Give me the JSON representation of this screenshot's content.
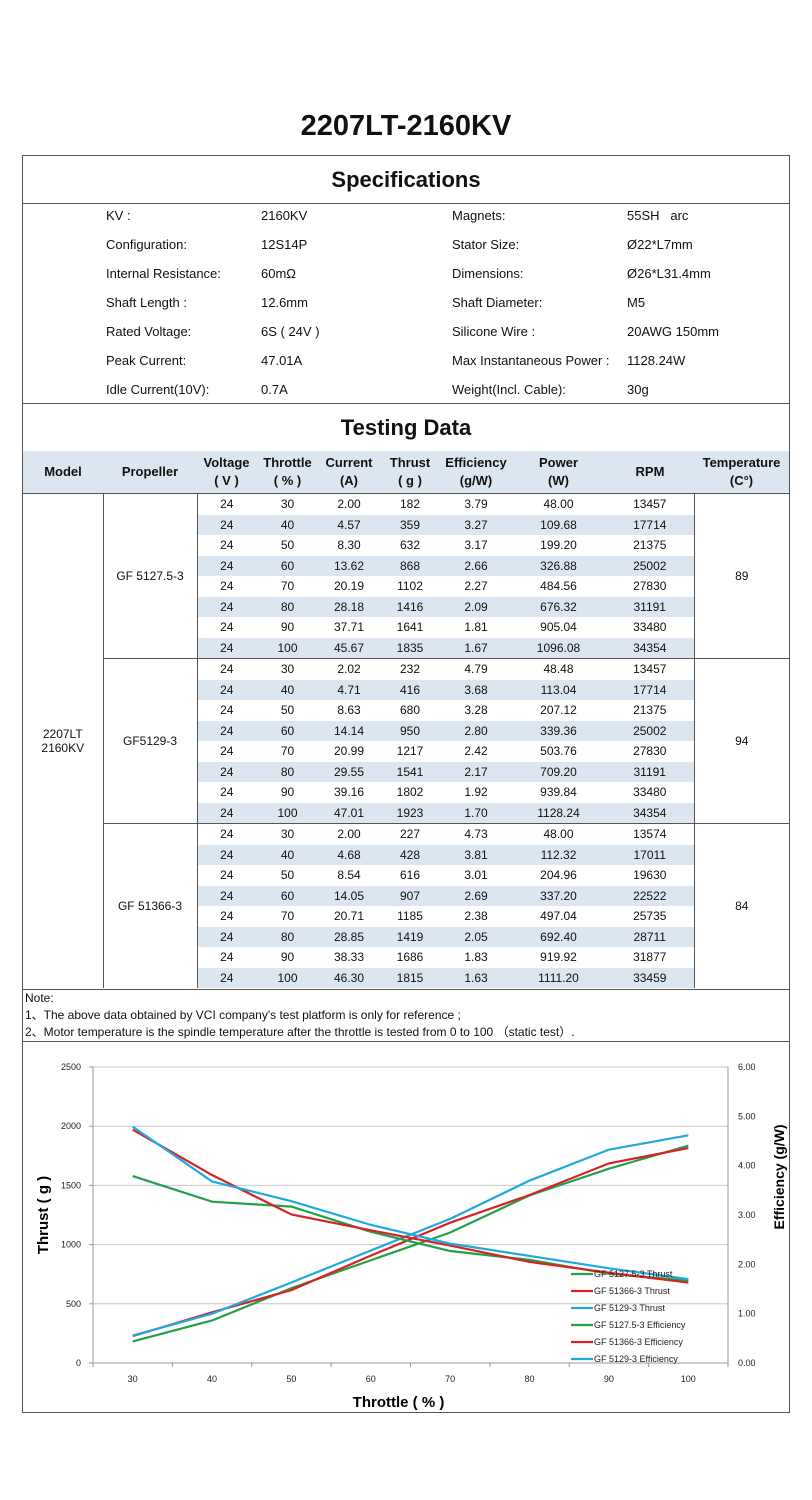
{
  "title": "2207LT-2160KV",
  "specifications": {
    "heading": "Specifications",
    "left": [
      {
        "label": "KV :",
        "value": "2160KV"
      },
      {
        "label": "Configuration:",
        "value": "12S14P"
      },
      {
        "label": "Internal Resistance:",
        "value": "60mΩ"
      },
      {
        "label": "Shaft Length :",
        "value": "12.6mm"
      },
      {
        "label": "Rated Voltage:",
        "value": "6S ( 24V )"
      },
      {
        "label": "Peak Current:",
        "value": "47.01A"
      },
      {
        "label": "Idle Current(10V):",
        "value": "0.7A"
      }
    ],
    "right": [
      {
        "label": "Magnets:",
        "value": "55SH   arc"
      },
      {
        "label": "Stator Size:",
        "value": "Ø22*L7mm"
      },
      {
        "label": "Dimensions:",
        "value": "Ø26*L31.4mm"
      },
      {
        "label": "Shaft Diameter:",
        "value": "M5"
      },
      {
        "label": "Silicone Wire :",
        "value": "20AWG 150mm"
      },
      {
        "label": "Max Instantaneous Power :",
        "value": "1128.24W"
      },
      {
        "label": "Weight(Incl. Cable):",
        "value": "30g"
      }
    ]
  },
  "testing": {
    "heading": "Testing Data",
    "columns": [
      [
        "Model"
      ],
      [
        "Propeller"
      ],
      [
        "Voltage",
        "( V )"
      ],
      [
        "Throttle",
        "( % )"
      ],
      [
        "Current",
        "(A)"
      ],
      [
        "Thrust",
        "( g )"
      ],
      [
        "Efficiency",
        "(g/W)"
      ],
      [
        "Power",
        "(W)"
      ],
      [
        "RPM"
      ],
      [
        "Temperature",
        "(C°)"
      ]
    ],
    "model": [
      "2207LT",
      "2160KV"
    ],
    "groups": [
      {
        "propeller": "GF 5127.5-3",
        "temperature": "89",
        "rows": [
          [
            "24",
            "30",
            "2.00",
            "182",
            "3.79",
            "48.00",
            "13457"
          ],
          [
            "24",
            "40",
            "4.57",
            "359",
            "3.27",
            "109.68",
            "17714"
          ],
          [
            "24",
            "50",
            "8.30",
            "632",
            "3.17",
            "199.20",
            "21375"
          ],
          [
            "24",
            "60",
            "13.62",
            "868",
            "2.66",
            "326.88",
            "25002"
          ],
          [
            "24",
            "70",
            "20.19",
            "1102",
            "2.27",
            "484.56",
            "27830"
          ],
          [
            "24",
            "80",
            "28.18",
            "1416",
            "2.09",
            "676.32",
            "31191"
          ],
          [
            "24",
            "90",
            "37.71",
            "1641",
            "1.81",
            "905.04",
            "33480"
          ],
          [
            "24",
            "100",
            "45.67",
            "1835",
            "1.67",
            "1096.08",
            "34354"
          ]
        ]
      },
      {
        "propeller": "GF5129-3",
        "temperature": "94",
        "rows": [
          [
            "24",
            "30",
            "2.02",
            "232",
            "4.79",
            "48.48",
            "13457"
          ],
          [
            "24",
            "40",
            "4.71",
            "416",
            "3.68",
            "113.04",
            "17714"
          ],
          [
            "24",
            "50",
            "8.63",
            "680",
            "3.28",
            "207.12",
            "21375"
          ],
          [
            "24",
            "60",
            "14.14",
            "950",
            "2.80",
            "339.36",
            "25002"
          ],
          [
            "24",
            "70",
            "20.99",
            "1217",
            "2.42",
            "503.76",
            "27830"
          ],
          [
            "24",
            "80",
            "29.55",
            "1541",
            "2.17",
            "709.20",
            "31191"
          ],
          [
            "24",
            "90",
            "39.16",
            "1802",
            "1.92",
            "939.84",
            "33480"
          ],
          [
            "24",
            "100",
            "47.01",
            "1923",
            "1.70",
            "1128.24",
            "34354"
          ]
        ]
      },
      {
        "propeller": "GF 51366-3",
        "temperature": "84",
        "rows": [
          [
            "24",
            "30",
            "2.00",
            "227",
            "4.73",
            "48.00",
            "13574"
          ],
          [
            "24",
            "40",
            "4.68",
            "428",
            "3.81",
            "112.32",
            "17011"
          ],
          [
            "24",
            "50",
            "8.54",
            "616",
            "3.01",
            "204.96",
            "19630"
          ],
          [
            "24",
            "60",
            "14.05",
            "907",
            "2.69",
            "337.20",
            "22522"
          ],
          [
            "24",
            "70",
            "20.71",
            "1185",
            "2.38",
            "497.04",
            "25735"
          ],
          [
            "24",
            "80",
            "28.85",
            "1419",
            "2.05",
            "692.40",
            "28711"
          ],
          [
            "24",
            "90",
            "38.33",
            "1686",
            "1.83",
            "919.92",
            "31877"
          ],
          [
            "24",
            "100",
            "46.30",
            "1815",
            "1.63",
            "1111.20",
            "33459"
          ]
        ]
      }
    ]
  },
  "notes": [
    "Note:",
    "1、The above data obtained by VCI company's test platform is only for reference ;",
    "2、Motor temperature is the spindle temperature after the throttle is tested from 0 to 100 （static test）."
  ],
  "chart_data": {
    "type": "line",
    "xlabel": "Throttle ( % )",
    "ylabel": "Thrust ( g )",
    "y2label": "Efficiency (g/W)",
    "categories": [
      "30",
      "40",
      "50",
      "60",
      "70",
      "80",
      "90",
      "100"
    ],
    "ylim": [
      0,
      2500
    ],
    "yticks": [
      "0",
      "500",
      "1000",
      "1500",
      "2000",
      "2500"
    ],
    "y2lim": [
      0,
      6
    ],
    "y2ticks": [
      "0.00",
      "1.00",
      "2.00",
      "3.00",
      "4.00",
      "5.00",
      "6.00"
    ],
    "grid": true,
    "legend": "bottom-right",
    "series": [
      {
        "name": "GF 5127.5-3 Thrust",
        "axis": "left",
        "color": "#24a048",
        "values": [
          182,
          359,
          632,
          868,
          1102,
          1416,
          1641,
          1835
        ]
      },
      {
        "name": "GF 51366-3 Thrust",
        "axis": "left",
        "color": "#d42424",
        "values": [
          227,
          428,
          616,
          907,
          1185,
          1419,
          1686,
          1815
        ]
      },
      {
        "name": "GF 5129-3 Thrust",
        "axis": "left",
        "color": "#20a8e0",
        "values": [
          232,
          416,
          680,
          950,
          1217,
          1541,
          1802,
          1923
        ]
      },
      {
        "name": "GF 5127.5-3 Efficiency",
        "axis": "right",
        "color": "#24a048",
        "values": [
          3.79,
          3.27,
          3.17,
          2.66,
          2.27,
          2.09,
          1.81,
          1.67
        ]
      },
      {
        "name": "GF 51366-3 Efficiency",
        "axis": "right",
        "color": "#d42424",
        "values": [
          4.73,
          3.81,
          3.01,
          2.69,
          2.38,
          2.05,
          1.83,
          1.63
        ]
      },
      {
        "name": "GF 5129-3 Efficiency",
        "axis": "right",
        "color": "#20a8e0",
        "values": [
          4.79,
          3.68,
          3.28,
          2.8,
          2.42,
          2.17,
          1.92,
          1.7
        ]
      }
    ]
  }
}
